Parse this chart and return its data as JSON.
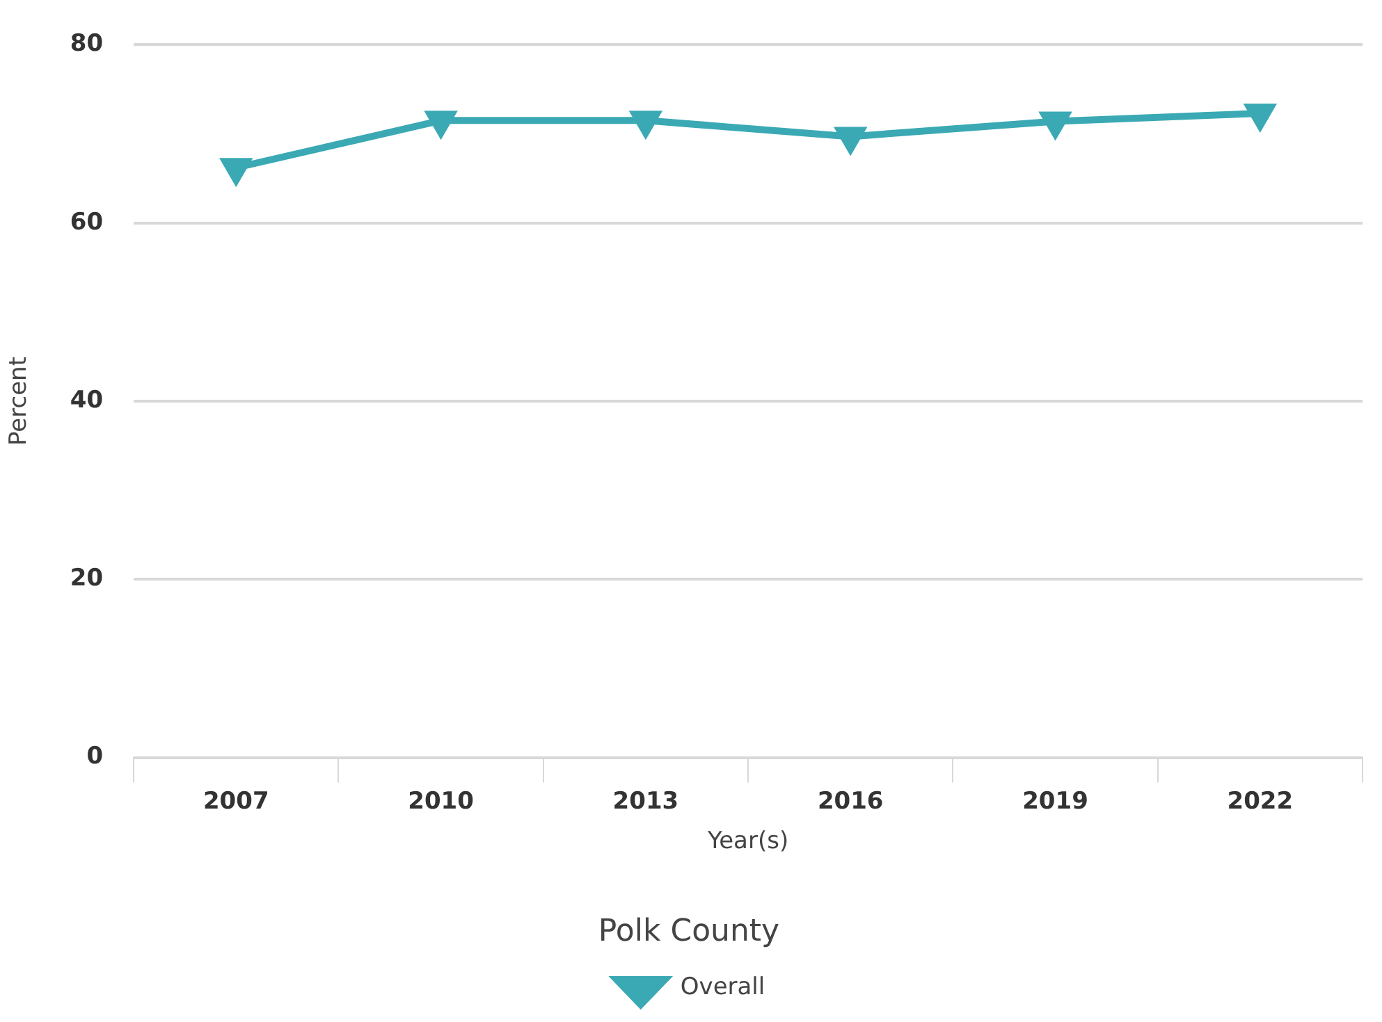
{
  "chart_data": {
    "type": "line",
    "xlabel": "Year(s)",
    "ylabel": "Percent",
    "legend_title": "Polk County",
    "categories": [
      "2007",
      "2010",
      "2013",
      "2016",
      "2019",
      "2022"
    ],
    "series": [
      {
        "name": "Overall",
        "color": "#3aa9b4",
        "values": [
          66.2,
          71.5,
          71.5,
          69.7,
          71.4,
          72.3
        ]
      }
    ],
    "ylim": [
      0,
      80
    ],
    "yticks": [
      0,
      20,
      40,
      60,
      80
    ],
    "grid": "y",
    "legend": "bottom",
    "marker": "triangle"
  }
}
